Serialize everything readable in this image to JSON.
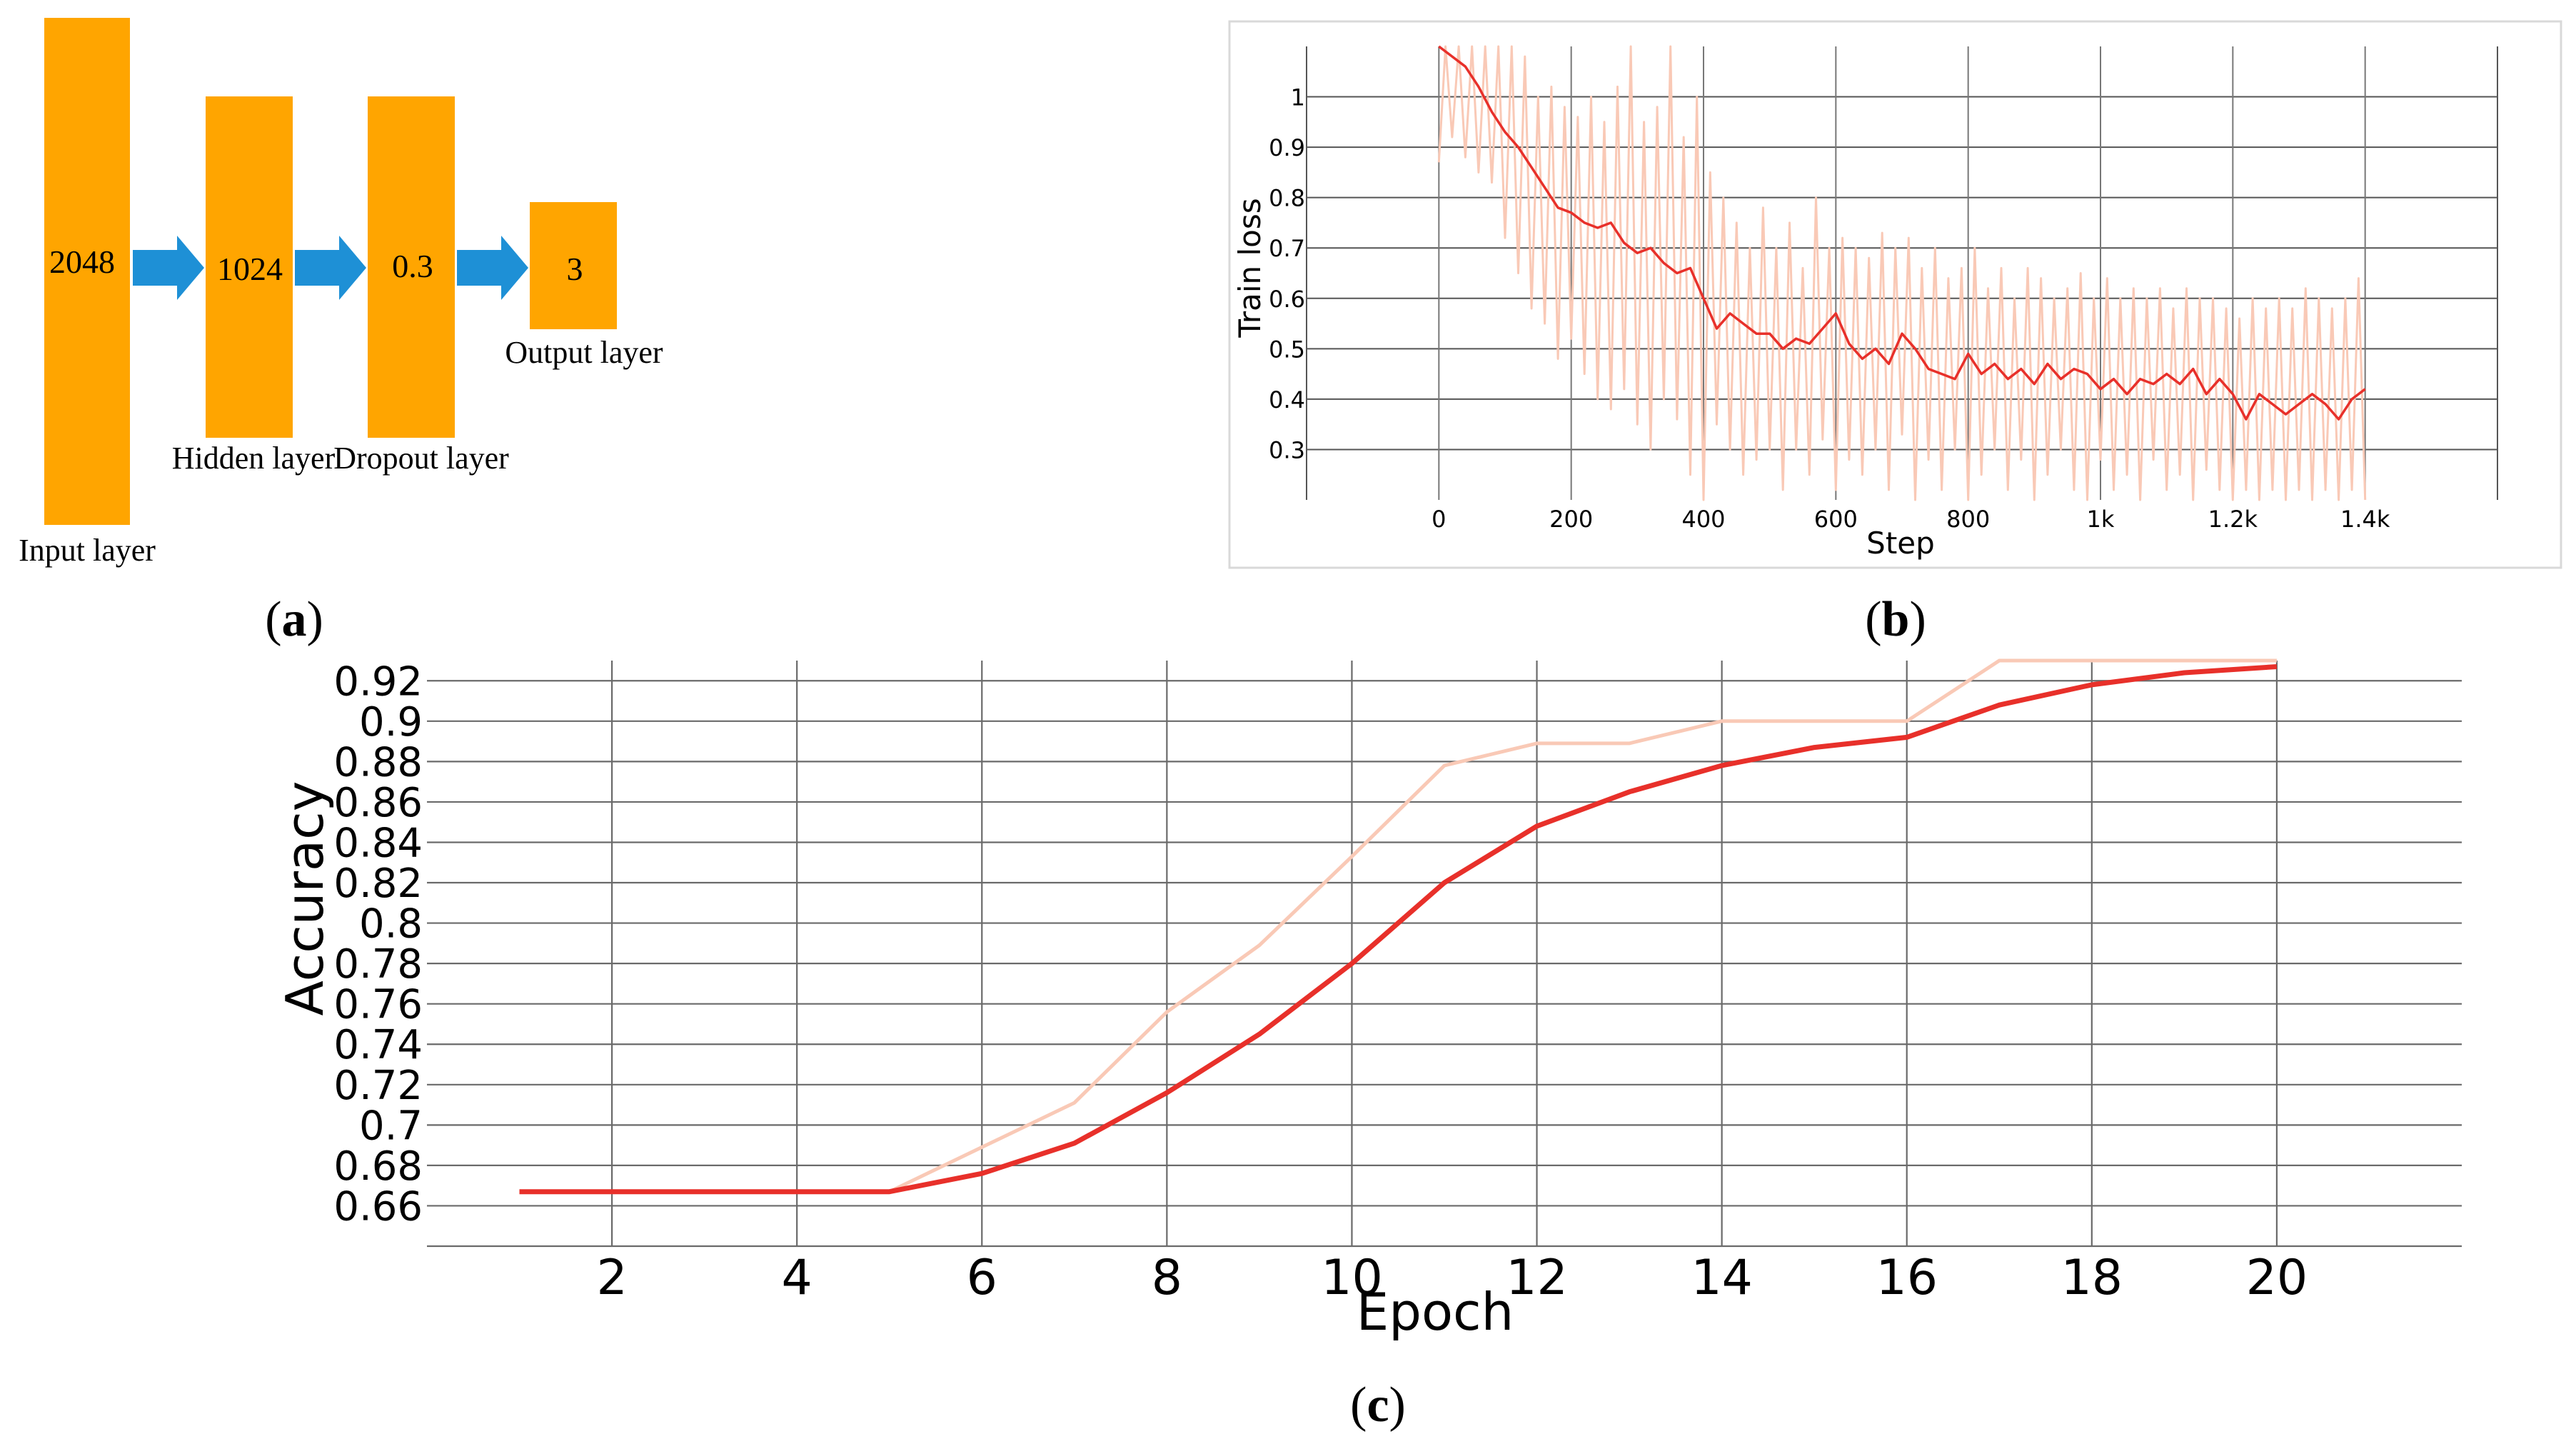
{
  "panels": {
    "a": {
      "letter": "a"
    },
    "b": {
      "letter": "b"
    },
    "c": {
      "letter": "c"
    }
  },
  "diagram": {
    "layers": [
      {
        "id": "input",
        "value": "2048",
        "label": "Input layer"
      },
      {
        "id": "hidden",
        "value": "1024",
        "label": "Hidden layer"
      },
      {
        "id": "dropout",
        "value": "0.3",
        "label": "Dropout layer"
      },
      {
        "id": "output",
        "value": "3",
        "label": "Output layer"
      }
    ],
    "colors": {
      "layer": "#FFA500",
      "arrow": "#1E90D6"
    }
  },
  "chart_data": [
    {
      "panel": "b",
      "type": "line",
      "xlabel": "Step",
      "ylabel": "Train loss",
      "xlim": [
        -200,
        1600
      ],
      "ylim": [
        0.2,
        1.1
      ],
      "x_ticks": [
        0,
        200,
        400,
        600,
        800,
        1000,
        1200,
        1400
      ],
      "x_tick_labels": [
        "0",
        "200",
        "400",
        "600",
        "800",
        "1k",
        "1.2k",
        "1.4k"
      ],
      "y_ticks": [
        0.3,
        0.4,
        0.5,
        0.6,
        0.7,
        0.8,
        0.9,
        1
      ],
      "y_tick_labels": [
        "0.3",
        "0.4",
        "0.5",
        "0.6",
        "0.7",
        "0.8",
        "0.9",
        "1"
      ],
      "grid": true,
      "colors": {
        "smoothed": "#E8302A",
        "raw": "#F9C9B6"
      },
      "series": [
        {
          "role": "smoothed",
          "x": [
            0,
            20,
            40,
            60,
            80,
            100,
            120,
            140,
            160,
            180,
            200,
            220,
            240,
            260,
            280,
            300,
            320,
            340,
            360,
            380,
            400,
            420,
            440,
            460,
            480,
            500,
            520,
            540,
            560,
            580,
            600,
            620,
            640,
            660,
            680,
            700,
            720,
            740,
            760,
            780,
            800,
            820,
            840,
            860,
            880,
            900,
            920,
            940,
            960,
            980,
            1000,
            1020,
            1040,
            1060,
            1080,
            1100,
            1120,
            1140,
            1160,
            1180,
            1200,
            1220,
            1240,
            1260,
            1280,
            1300,
            1320,
            1340,
            1360,
            1380,
            1400
          ],
          "values": [
            1.1,
            1.08,
            1.06,
            1.02,
            0.97,
            0.93,
            0.9,
            0.86,
            0.82,
            0.78,
            0.77,
            0.75,
            0.74,
            0.75,
            0.71,
            0.69,
            0.7,
            0.67,
            0.65,
            0.66,
            0.6,
            0.54,
            0.57,
            0.55,
            0.53,
            0.53,
            0.5,
            0.52,
            0.51,
            0.54,
            0.57,
            0.51,
            0.48,
            0.5,
            0.47,
            0.53,
            0.5,
            0.46,
            0.45,
            0.44,
            0.49,
            0.45,
            0.47,
            0.44,
            0.46,
            0.43,
            0.47,
            0.44,
            0.46,
            0.45,
            0.42,
            0.44,
            0.41,
            0.44,
            0.43,
            0.45,
            0.43,
            0.46,
            0.41,
            0.44,
            0.41,
            0.36,
            0.41,
            0.39,
            0.37,
            0.39,
            0.41,
            0.39,
            0.36,
            0.4,
            0.42
          ]
        },
        {
          "role": "raw",
          "x": [
            0,
            10,
            20,
            30,
            40,
            50,
            60,
            70,
            80,
            90,
            100,
            110,
            120,
            130,
            140,
            150,
            160,
            170,
            180,
            190,
            200,
            210,
            220,
            230,
            240,
            250,
            260,
            270,
            280,
            290,
            300,
            310,
            320,
            330,
            340,
            350,
            360,
            370,
            380,
            390,
            400,
            410,
            420,
            430,
            440,
            450,
            460,
            470,
            480,
            490,
            500,
            510,
            520,
            530,
            540,
            550,
            560,
            570,
            580,
            590,
            600,
            610,
            620,
            630,
            640,
            650,
            660,
            670,
            680,
            690,
            700,
            710,
            720,
            730,
            740,
            750,
            760,
            770,
            780,
            790,
            800,
            810,
            820,
            830,
            840,
            850,
            860,
            870,
            880,
            890,
            900,
            910,
            920,
            930,
            940,
            950,
            960,
            970,
            980,
            990,
            1000,
            1010,
            1020,
            1030,
            1040,
            1050,
            1060,
            1070,
            1080,
            1090,
            1100,
            1110,
            1120,
            1130,
            1140,
            1150,
            1160,
            1170,
            1180,
            1190,
            1200,
            1210,
            1220,
            1230,
            1240,
            1250,
            1260,
            1270,
            1280,
            1290,
            1300,
            1310,
            1320,
            1330,
            1340,
            1350,
            1360,
            1370,
            1380,
            1390,
            1400
          ],
          "values": [
            0.87,
            1.1,
            0.92,
            1.1,
            0.88,
            1.1,
            0.85,
            1.1,
            0.83,
            1.1,
            0.72,
            1.1,
            0.65,
            1.08,
            0.58,
            1.0,
            0.55,
            1.02,
            0.48,
            0.98,
            0.52,
            0.96,
            0.45,
            1.0,
            0.4,
            0.95,
            0.38,
            1.02,
            0.42,
            1.1,
            0.35,
            0.95,
            0.3,
            0.98,
            0.4,
            1.1,
            0.36,
            0.92,
            0.25,
            1.0,
            0.2,
            0.85,
            0.35,
            0.8,
            0.3,
            0.75,
            0.25,
            0.7,
            0.28,
            0.78,
            0.3,
            0.7,
            0.22,
            0.75,
            0.3,
            0.66,
            0.25,
            0.8,
            0.32,
            0.7,
            0.22,
            0.72,
            0.28,
            0.7,
            0.25,
            0.68,
            0.3,
            0.73,
            0.22,
            0.7,
            0.33,
            0.72,
            0.2,
            0.66,
            0.28,
            0.7,
            0.22,
            0.64,
            0.3,
            0.66,
            0.2,
            0.7,
            0.25,
            0.62,
            0.3,
            0.66,
            0.22,
            0.6,
            0.28,
            0.66,
            0.2,
            0.64,
            0.25,
            0.6,
            0.3,
            0.62,
            0.22,
            0.65,
            0.2,
            0.6,
            0.28,
            0.64,
            0.22,
            0.6,
            0.25,
            0.62,
            0.2,
            0.6,
            0.28,
            0.62,
            0.22,
            0.58,
            0.25,
            0.62,
            0.2,
            0.6,
            0.26,
            0.6,
            0.22,
            0.58,
            0.2,
            0.56,
            0.22,
            0.6,
            0.2,
            0.58,
            0.22,
            0.6,
            0.2,
            0.58,
            0.22,
            0.62,
            0.2,
            0.6,
            0.22,
            0.58,
            0.2,
            0.6,
            0.22,
            0.64,
            0.2
          ]
        }
      ]
    },
    {
      "panel": "c",
      "type": "line",
      "xlabel": "Epoch",
      "ylabel": "Accuracy",
      "xlim": [
        0,
        22
      ],
      "ylim": [
        0.64,
        0.93
      ],
      "x_ticks": [
        2,
        4,
        6,
        8,
        10,
        12,
        14,
        16,
        18,
        20
      ],
      "x_tick_labels": [
        "2",
        "4",
        "6",
        "8",
        "10",
        "12",
        "14",
        "16",
        "18",
        "20"
      ],
      "y_ticks": [
        0.66,
        0.68,
        0.7,
        0.72,
        0.74,
        0.76,
        0.78,
        0.8,
        0.82,
        0.84,
        0.86,
        0.88,
        0.9,
        0.92
      ],
      "y_tick_labels": [
        "0.66",
        "0.68",
        "0.7",
        "0.72",
        "0.74",
        "0.76",
        "0.78",
        "0.8",
        "0.82",
        "0.84",
        "0.86",
        "0.88",
        "0.9",
        "0.92"
      ],
      "grid": true,
      "colors": {
        "smoothed": "#E8302A",
        "raw": "#F9C9B6"
      },
      "series": [
        {
          "role": "raw",
          "x": [
            1,
            2,
            3,
            4,
            5,
            6,
            7,
            8,
            9,
            10,
            11,
            12,
            13,
            14,
            15,
            16,
            17,
            18,
            19,
            20
          ],
          "values": [
            0.667,
            0.667,
            0.667,
            0.667,
            0.667,
            0.689,
            0.711,
            0.756,
            0.789,
            0.833,
            0.878,
            0.889,
            0.889,
            0.9,
            0.9,
            0.9,
            0.933,
            0.933,
            0.933,
            0.933
          ]
        },
        {
          "role": "smoothed",
          "x": [
            1,
            2,
            3,
            4,
            5,
            6,
            7,
            8,
            9,
            10,
            11,
            12,
            13,
            14,
            15,
            16,
            17,
            18,
            19,
            20
          ],
          "values": [
            0.667,
            0.667,
            0.667,
            0.667,
            0.667,
            0.676,
            0.691,
            0.716,
            0.745,
            0.78,
            0.82,
            0.848,
            0.865,
            0.878,
            0.887,
            0.892,
            0.908,
            0.918,
            0.924,
            0.927
          ]
        }
      ]
    }
  ]
}
